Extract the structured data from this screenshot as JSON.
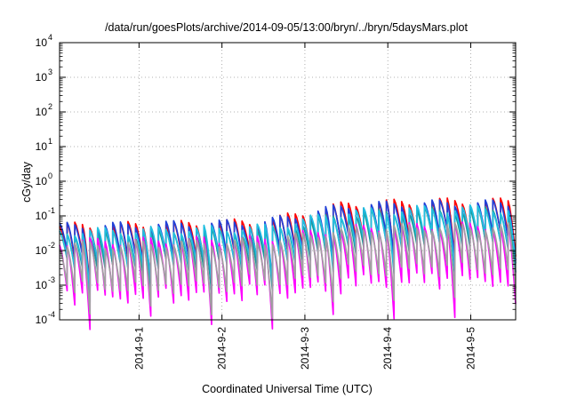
{
  "chart_data": {
    "type": "line",
    "title": "/data/run/goesPlots/archive/2014-09-05/13:00/bryn/../bryn/5daysMars.plot",
    "xlabel": "Coordinated Universal Time (UTC)",
    "ylabel": "cGy/day",
    "x_range": [
      "2014-08-31T01:00",
      "2014-09-05T13:00"
    ],
    "x_ticks": [
      "2014-9-1",
      "2014-9-2",
      "2014-9-3",
      "2014-9-4",
      "2014-9-5"
    ],
    "y_scale": "log",
    "ylim": [
      0.0001,
      10000
    ],
    "y_ticks": [
      {
        "base": "10",
        "exp": "-4"
      },
      {
        "base": "10",
        "exp": "-3"
      },
      {
        "base": "10",
        "exp": "-2"
      },
      {
        "base": "10",
        "exp": "-1"
      },
      {
        "base": "10",
        "exp": "0"
      },
      {
        "base": "10",
        "exp": "1"
      },
      {
        "base": "10",
        "exp": "2"
      },
      {
        "base": "10",
        "exp": "3"
      },
      {
        "base": "10",
        "exp": "4"
      }
    ],
    "grid": true,
    "sawtooth_period_hours": 2.2,
    "series": [
      {
        "color": "#ff0000",
        "peak_log": [
          -1.3,
          -1.25,
          -1.18,
          -0.68,
          -0.6
        ],
        "drop_log": 1.0,
        "notch_depth": 0.7
      },
      {
        "color": "#2040d8",
        "peak_log": [
          -1.3,
          -1.25,
          -1.2,
          -0.72,
          -0.65
        ],
        "drop_log": 0.95,
        "notch_depth": 0.7
      },
      {
        "color": "#1a9a9a",
        "peak_log": [
          -1.55,
          -1.5,
          -1.45,
          -0.95,
          -0.85
        ],
        "drop_log": 0.95,
        "notch_depth": 0.8
      },
      {
        "color": "#20c0e0",
        "peak_log": [
          -1.45,
          -1.4,
          -1.35,
          -0.9,
          -0.8
        ],
        "drop_log": 0.9,
        "notch_depth": 0.7
      },
      {
        "color": "#ff00ff",
        "peak_log": [
          -1.75,
          -1.72,
          -1.68,
          -1.38,
          -1.3
        ],
        "drop_log": 1.55,
        "notch_depth": 0.9
      },
      {
        "color": "#a0a0a0",
        "peak_log": [
          -1.85,
          -1.8,
          -1.75,
          -1.4,
          -1.32
        ],
        "drop_log": 1.2,
        "notch_depth": 0.8
      }
    ]
  }
}
